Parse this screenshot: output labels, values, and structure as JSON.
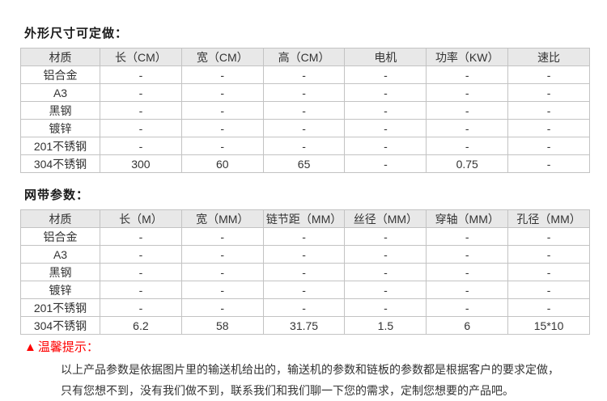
{
  "page": {
    "section1_title": "外形尺寸可定做：",
    "section2_title": "网带参数：",
    "tip": {
      "icon": "▲",
      "label": "温馨提示："
    },
    "notice_lines": {
      "line1": "以上产品参数是依据图片里的输送机给出的，输送机的参数和链板的参数都是根据客户的要求定做，",
      "line2": "只有您想不到，没有我们做不到，联系我们和我们聊一下您的需求，定制您想要的产品吧。"
    }
  },
  "dimensions_table": {
    "headers": [
      "材质",
      "长（CM）",
      "宽（CM）",
      "高（CM）",
      "电机",
      "功率（KW）",
      "速比"
    ],
    "rows": [
      [
        "铝合金",
        "-",
        "-",
        "-",
        "-",
        "-",
        "-"
      ],
      [
        "A3",
        "-",
        "-",
        "-",
        "-",
        "-",
        "-"
      ],
      [
        "黑钢",
        "-",
        "-",
        "-",
        "-",
        "-",
        "-"
      ],
      [
        "镀锌",
        "-",
        "-",
        "-",
        "-",
        "-",
        "-"
      ],
      [
        "201不锈钢",
        "-",
        "-",
        "-",
        "-",
        "-",
        "-"
      ],
      [
        "304不锈钢",
        "300",
        "60",
        "65",
        "-",
        "0.75",
        "-"
      ]
    ]
  },
  "belt_table": {
    "headers": [
      "材质",
      "长（M）",
      "宽（MM）",
      "链节距（MM）",
      "丝径（MM）",
      "穿轴（MM）",
      "孔径（MM）"
    ],
    "rows": [
      [
        "铝合金",
        "-",
        "-",
        "-",
        "-",
        "-",
        "-"
      ],
      [
        "A3",
        "-",
        "-",
        "-",
        "-",
        "-",
        "-"
      ],
      [
        "黑钢",
        "-",
        "-",
        "-",
        "-",
        "-",
        "-"
      ],
      [
        "镀锌",
        "-",
        "-",
        "-",
        "-",
        "-",
        "-"
      ],
      [
        "201不锈钢",
        "-",
        "-",
        "-",
        "-",
        "-",
        "-"
      ],
      [
        "304不锈钢",
        "6.2",
        "58",
        "31.75",
        "1.5",
        "6",
        "15*10"
      ]
    ]
  },
  "colors": {
    "header_bg": "#e8e8e8",
    "border": "#c3c3c3",
    "text": "#333333",
    "tip_red": "#fe0000"
  }
}
